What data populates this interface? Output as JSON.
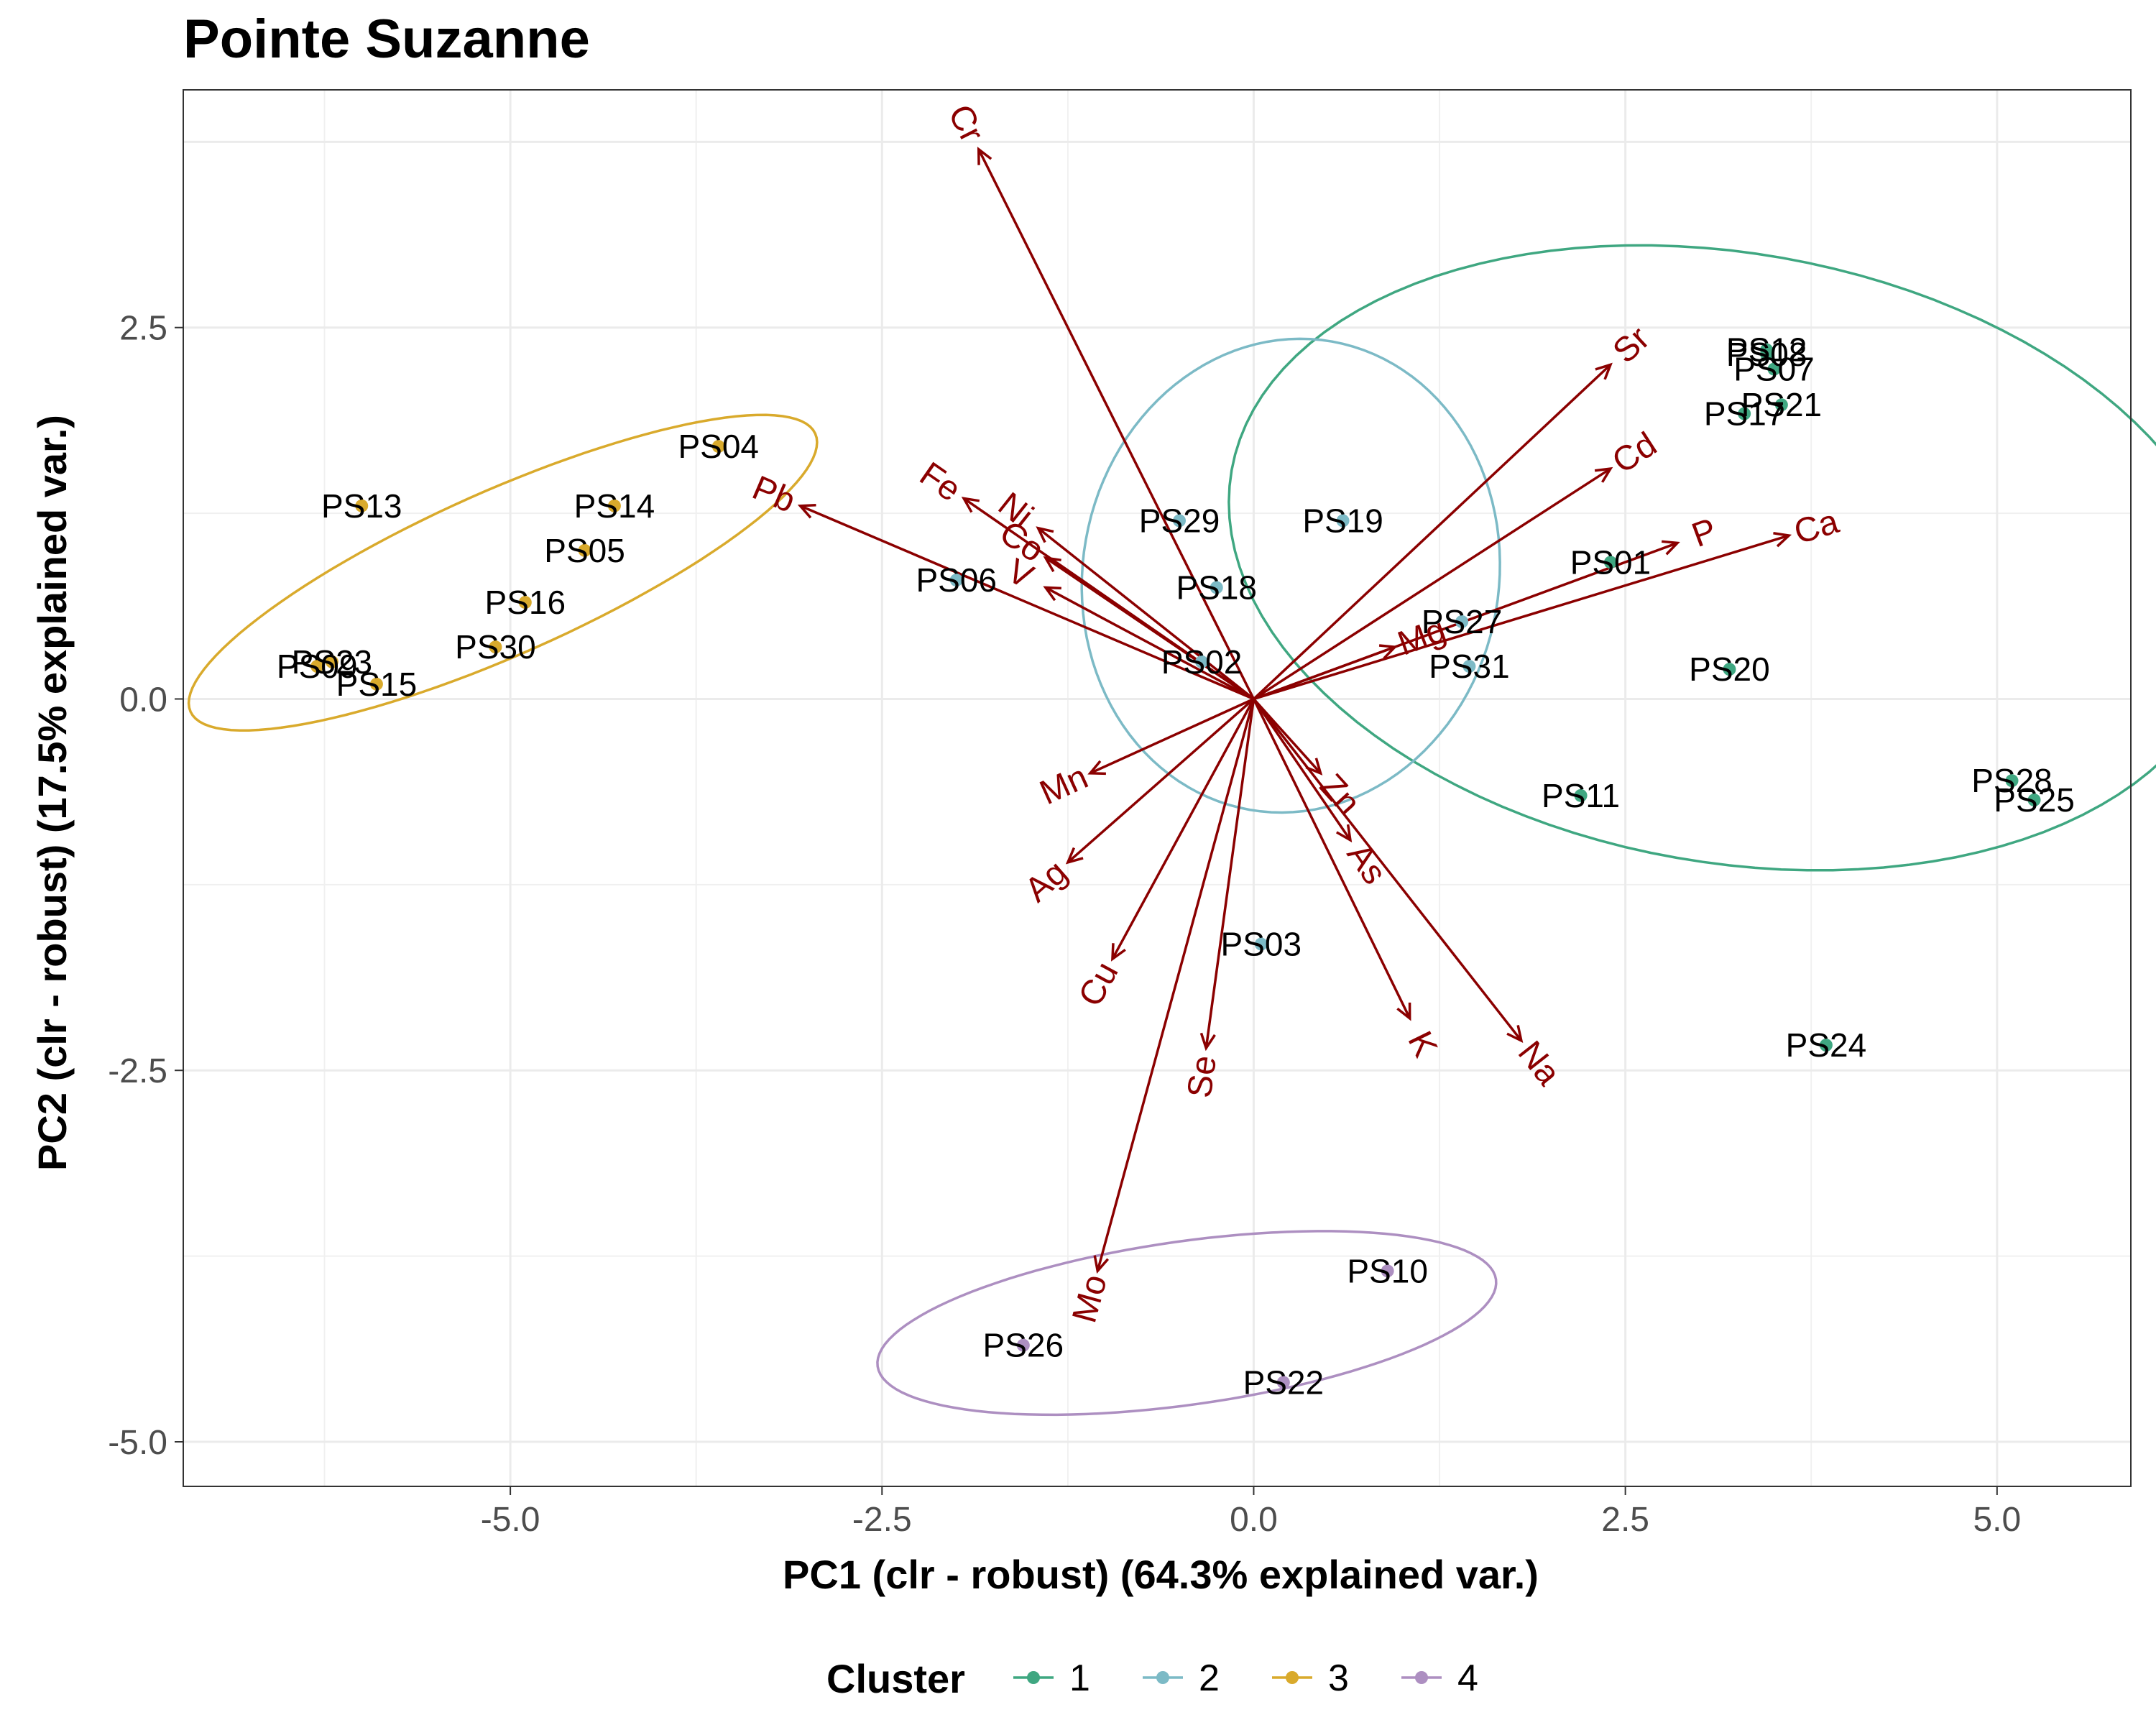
{
  "chart_data": {
    "type": "scatter",
    "title": "Pointe Suzanne",
    "xlabel": "PC1 (clr - robust) (64.3% explained var.)",
    "ylabel": "PC2 (clr - robust) (17.5% explained var.)",
    "xlim": [
      -7.2,
      5.9
    ],
    "ylim": [
      -5.3,
      4.1
    ],
    "x_ticks": [
      -5.0,
      -2.5,
      0.0,
      2.5,
      5.0
    ],
    "x_tick_labels": [
      "-5.0",
      "-2.5",
      "0.0",
      "2.5",
      "5.0"
    ],
    "y_ticks": [
      -5.0,
      -2.5,
      0.0,
      2.5
    ],
    "y_tick_labels": [
      "-5.0",
      "-2.5",
      "0.0",
      "2.5"
    ],
    "grid": true,
    "legend": {
      "title": "Cluster",
      "placement": "bottom",
      "entries": [
        {
          "label": "1",
          "color": "#3fa781"
        },
        {
          "label": "2",
          "color": "#7cbac6"
        },
        {
          "label": "3",
          "color": "#d9aa2c"
        },
        {
          "label": "4",
          "color": "#ad8fc1"
        }
      ]
    },
    "points": [
      {
        "label": "PS04",
        "x": -3.6,
        "y": 1.7,
        "cluster": "3"
      },
      {
        "label": "PS13",
        "x": -6.0,
        "y": 1.3,
        "cluster": "3"
      },
      {
        "label": "PS14",
        "x": -4.3,
        "y": 1.3,
        "cluster": "3"
      },
      {
        "label": "PS05",
        "x": -4.5,
        "y": 1.0,
        "cluster": "3"
      },
      {
        "label": "PS16",
        "x": -4.9,
        "y": 0.65,
        "cluster": "3"
      },
      {
        "label": "PS30",
        "x": -5.1,
        "y": 0.35,
        "cluster": "3"
      },
      {
        "label": "PS09",
        "x": -6.3,
        "y": 0.22,
        "cluster": "3"
      },
      {
        "label": "PS23",
        "x": -6.2,
        "y": 0.25,
        "cluster": "3"
      },
      {
        "label": "PS15",
        "x": -5.9,
        "y": 0.1,
        "cluster": "3"
      },
      {
        "label": "PS29",
        "x": -0.5,
        "y": 1.2,
        "cluster": "2"
      },
      {
        "label": "PS19",
        "x": 0.6,
        "y": 1.2,
        "cluster": "2"
      },
      {
        "label": "PS06",
        "x": -2.0,
        "y": 0.8,
        "cluster": "2"
      },
      {
        "label": "PS18",
        "x": -0.25,
        "y": 0.75,
        "cluster": "2"
      },
      {
        "label": "PS02",
        "x": -0.35,
        "y": 0.25,
        "cluster": "2"
      },
      {
        "label": "PS27",
        "x": 1.4,
        "y": 0.52,
        "cluster": "2"
      },
      {
        "label": "PS31",
        "x": 1.45,
        "y": 0.22,
        "cluster": "2"
      },
      {
        "label": "PS03",
        "x": 0.05,
        "y": -1.65,
        "cluster": "2"
      },
      {
        "label": "PS12",
        "x": 3.45,
        "y": 2.35,
        "cluster": "1"
      },
      {
        "label": "PS08",
        "x": 3.45,
        "y": 2.32,
        "cluster": "1"
      },
      {
        "label": "PS07",
        "x": 3.5,
        "y": 2.22,
        "cluster": "1"
      },
      {
        "label": "PS21",
        "x": 3.55,
        "y": 1.98,
        "cluster": "1"
      },
      {
        "label": "PS17",
        "x": 3.3,
        "y": 1.92,
        "cluster": "1"
      },
      {
        "label": "PS01",
        "x": 2.4,
        "y": 0.92,
        "cluster": "1"
      },
      {
        "label": "PS20",
        "x": 3.2,
        "y": 0.2,
        "cluster": "1"
      },
      {
        "label": "PS11",
        "x": 2.2,
        "y": -0.65,
        "cluster": "1"
      },
      {
        "label": "PS28",
        "x": 5.1,
        "y": -0.55,
        "cluster": "1"
      },
      {
        "label": "PS25",
        "x": 5.25,
        "y": -0.68,
        "cluster": "1"
      },
      {
        "label": "PS24",
        "x": 3.85,
        "y": -2.33,
        "cluster": "1"
      },
      {
        "label": "PS10",
        "x": 0.9,
        "y": -3.85,
        "cluster": "4"
      },
      {
        "label": "PS26",
        "x": -1.55,
        "y": -4.35,
        "cluster": "4"
      },
      {
        "label": "PS22",
        "x": 0.2,
        "y": -4.6,
        "cluster": "4"
      }
    ],
    "loadings": [
      {
        "label": "Cr",
        "x": -1.85,
        "y": 3.7
      },
      {
        "label": "Pb",
        "x": -3.05,
        "y": 1.3
      },
      {
        "label": "Fe",
        "x": -1.95,
        "y": 1.35
      },
      {
        "label": "Ni",
        "x": -1.45,
        "y": 1.15
      },
      {
        "label": "Co",
        "x": -1.4,
        "y": 0.95
      },
      {
        "label": "V",
        "x": -1.4,
        "y": 0.75
      },
      {
        "label": "Sr",
        "x": 2.4,
        "y": 2.25
      },
      {
        "label": "Cd",
        "x": 2.4,
        "y": 1.55
      },
      {
        "label": "P",
        "x": 2.85,
        "y": 1.05
      },
      {
        "label": "Ca",
        "x": 3.6,
        "y": 1.1
      },
      {
        "label": "Mg",
        "x": 0.95,
        "y": 0.35
      },
      {
        "label": "Mn",
        "x": -1.1,
        "y": -0.5
      },
      {
        "label": "Ag",
        "x": -1.25,
        "y": -1.1
      },
      {
        "label": "Cu",
        "x": -0.95,
        "y": -1.75
      },
      {
        "label": "Se",
        "x": -0.32,
        "y": -2.35
      },
      {
        "label": "Mo",
        "x": -1.05,
        "y": -3.85
      },
      {
        "label": "Zn",
        "x": 0.45,
        "y": -0.5
      },
      {
        "label": "As",
        "x": 0.65,
        "y": -0.95
      },
      {
        "label": "K",
        "x": 1.05,
        "y": -2.15
      },
      {
        "label": "Na",
        "x": 1.8,
        "y": -2.3
      }
    ],
    "ellipses": [
      {
        "cluster": "1",
        "cx": 3.2,
        "cy": 0.95,
        "rx": 2.05,
        "ry": 3.4,
        "angle_deg": 80
      },
      {
        "cluster": "2",
        "cx": 0.25,
        "cy": 0.83,
        "rx": 1.6,
        "ry": 1.4,
        "angle_deg": 80
      },
      {
        "cluster": "3",
        "cx": -5.05,
        "cy": 0.85,
        "rx": 2.3,
        "ry": 0.55,
        "angle_deg": 24
      },
      {
        "cluster": "4",
        "cx": -0.45,
        "cy": -4.2,
        "rx": 2.1,
        "ry": 0.55,
        "angle_deg": 8
      }
    ]
  }
}
